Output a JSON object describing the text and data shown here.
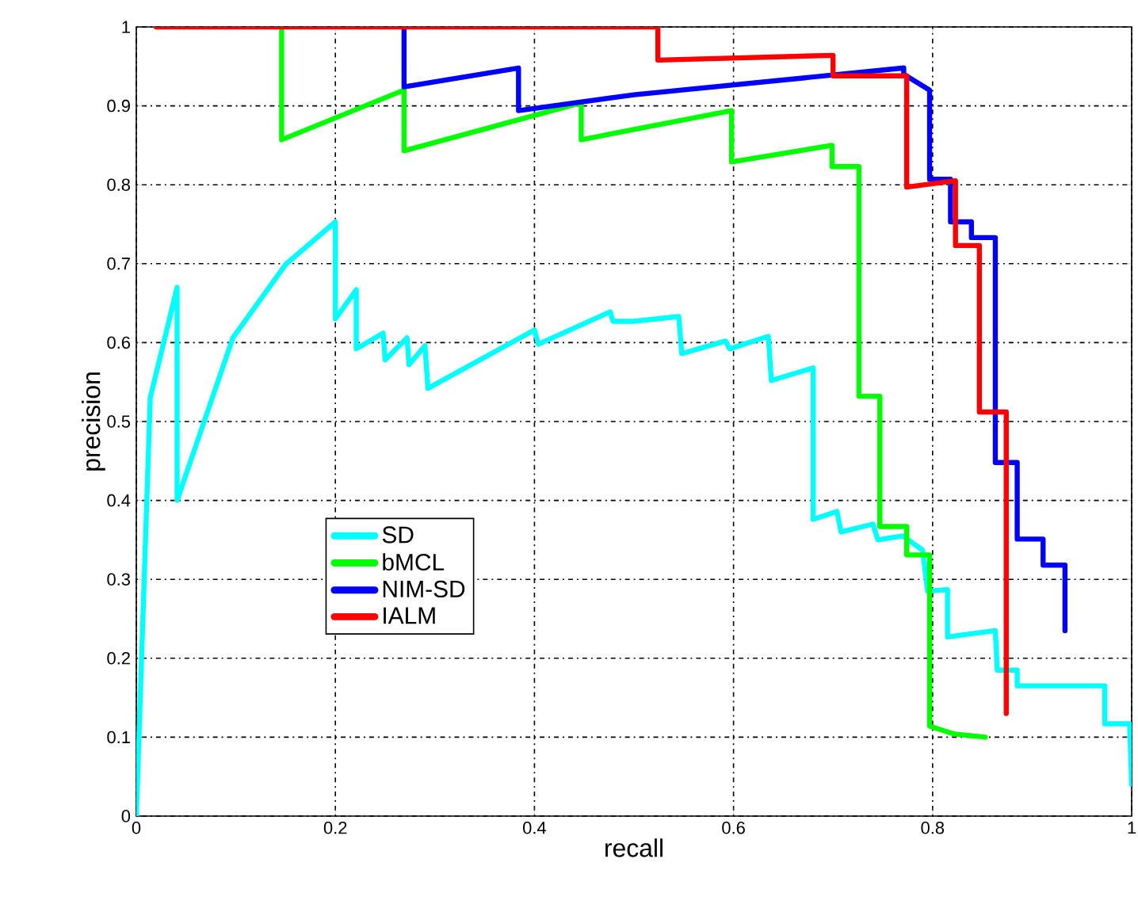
{
  "chart_data": {
    "type": "line",
    "xlabel": "recall",
    "ylabel": "precision",
    "xlim": [
      0,
      1
    ],
    "ylim": [
      0,
      1
    ],
    "xticks": [
      0,
      0.2,
      0.4,
      0.6,
      0.8,
      1
    ],
    "yticks": [
      0,
      0.1,
      0.2,
      0.3,
      0.4,
      0.5,
      0.6,
      0.7,
      0.8,
      0.9,
      1
    ],
    "grid": true,
    "legend": "bottom left",
    "line_style": "solid",
    "series": [
      {
        "name": "SD",
        "color": "#00ffff",
        "x": [
          0,
          0.014,
          0.041,
          0.041,
          0.097,
          0.15,
          0.2,
          0.2,
          0.221,
          0.221,
          0.248,
          0.25,
          0.272,
          0.274,
          0.29,
          0.293,
          0.4,
          0.404,
          0.476,
          0.479,
          0.5,
          0.545,
          0.548,
          0.592,
          0.596,
          0.635,
          0.638,
          0.68,
          0.68,
          0.704,
          0.708,
          0.74,
          0.745,
          0.77,
          0.79,
          0.795,
          0.815,
          0.815,
          0.863,
          0.865,
          0.885,
          0.885,
          0.973,
          0.973,
          0.998,
          1.0
        ],
        "values": [
          0,
          0.53,
          0.67,
          0.4,
          0.606,
          0.699,
          0.753,
          0.63,
          0.667,
          0.592,
          0.612,
          0.578,
          0.606,
          0.572,
          0.596,
          0.542,
          0.616,
          0.598,
          0.639,
          0.627,
          0.627,
          0.633,
          0.586,
          0.602,
          0.592,
          0.608,
          0.552,
          0.568,
          0.376,
          0.386,
          0.36,
          0.37,
          0.35,
          0.355,
          0.337,
          0.285,
          0.287,
          0.227,
          0.235,
          0.185,
          0.185,
          0.165,
          0.165,
          0.117,
          0.117,
          0.04
        ]
      },
      {
        "name": "bMCL",
        "color": "#00ff00",
        "x": [
          0.146,
          0.146,
          0.269,
          0.269,
          0.447,
          0.447,
          0.5,
          0.598,
          0.598,
          0.699,
          0.699,
          0.726,
          0.726,
          0.747,
          0.747,
          0.774,
          0.774,
          0.797,
          0.797,
          0.822,
          0.853
        ],
        "values": [
          1,
          0.857,
          0.92,
          0.843,
          0.904,
          0.857,
          0.87,
          0.894,
          0.829,
          0.85,
          0.823,
          0.823,
          0.532,
          0.532,
          0.367,
          0.367,
          0.331,
          0.331,
          0.114,
          0.104,
          0.1
        ]
      },
      {
        "name": "NIM-SD",
        "color": "#0000ff",
        "x": [
          0.269,
          0.269,
          0.384,
          0.384,
          0.5,
          0.771,
          0.771,
          0.797,
          0.797,
          0.818,
          0.818,
          0.839,
          0.839,
          0.863,
          0.863,
          0.885,
          0.885,
          0.911,
          0.911,
          0.933,
          0.933
        ],
        "values": [
          1,
          0.924,
          0.948,
          0.894,
          0.914,
          0.948,
          0.94,
          0.92,
          0.807,
          0.807,
          0.753,
          0.753,
          0.733,
          0.733,
          0.448,
          0.448,
          0.351,
          0.351,
          0.318,
          0.318,
          0.235
        ]
      },
      {
        "name": "IALM",
        "color": "#ff0000",
        "x": [
          0.02,
          0.524,
          0.524,
          0.7,
          0.7,
          0.774,
          0.774,
          0.823,
          0.823,
          0.847,
          0.847,
          0.874,
          0.874
        ],
        "values": [
          1,
          1,
          0.958,
          0.964,
          0.938,
          0.938,
          0.797,
          0.805,
          0.723,
          0.723,
          0.512,
          0.512,
          0.13
        ]
      }
    ]
  }
}
